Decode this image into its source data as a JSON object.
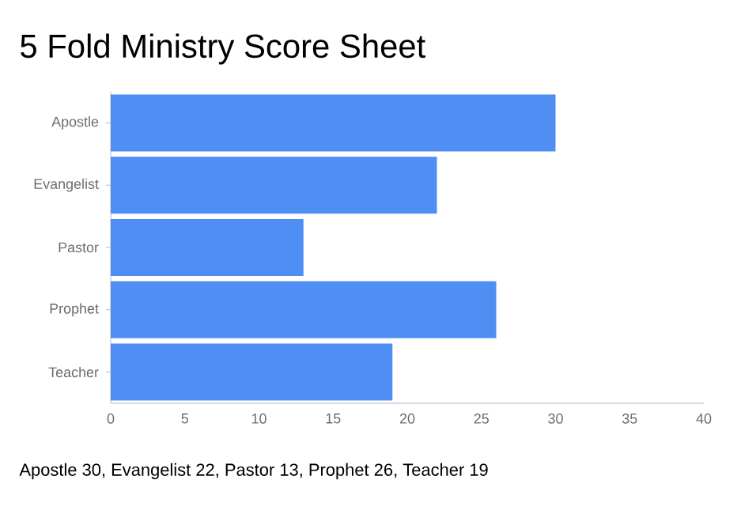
{
  "chart_data": {
    "type": "bar",
    "orientation": "horizontal",
    "title": "5 Fold Ministry Score Sheet",
    "categories": [
      "Apostle",
      "Evangelist",
      "Pastor",
      "Prophet",
      "Teacher"
    ],
    "values": [
      30,
      22,
      13,
      26,
      19
    ],
    "color": "#4f8ef3",
    "xlim": [
      0,
      40
    ],
    "xticks": [
      0,
      5,
      10,
      15,
      20,
      25,
      30,
      35,
      40
    ],
    "annotations": [
      "Apostle 30, Evangelist 22, Pastor 13, Prophet 26, Teacher 19"
    ]
  }
}
